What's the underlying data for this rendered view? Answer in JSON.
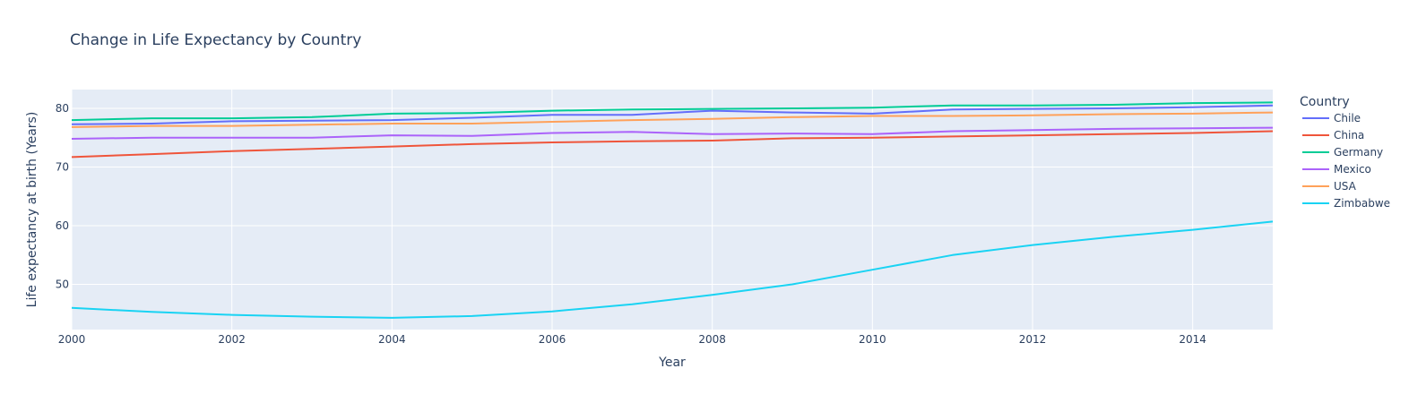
{
  "chart_data": {
    "type": "line",
    "title": "Change in Life Expectancy by Country",
    "xlabel": "Year",
    "ylabel": "Life expectancy at birth (Years)",
    "xlim": [
      2000,
      2015
    ],
    "ylim": [
      42.3,
      83.2
    ],
    "x_ticks": [
      2000,
      2002,
      2004,
      2006,
      2008,
      2010,
      2012,
      2014
    ],
    "y_ticks": [
      50,
      60,
      70,
      80
    ],
    "grid": true,
    "legend_title": "Country",
    "legend_position": "right",
    "x": [
      2000,
      2001,
      2002,
      2003,
      2004,
      2005,
      2006,
      2007,
      2008,
      2009,
      2010,
      2011,
      2012,
      2013,
      2014,
      2015
    ],
    "series": [
      {
        "name": "Chile",
        "color": "#636efa",
        "values": [
          77.3,
          77.4,
          77.8,
          77.9,
          78.0,
          78.4,
          78.9,
          78.9,
          79.6,
          79.3,
          79.1,
          79.8,
          79.9,
          80.0,
          80.2,
          80.5
        ]
      },
      {
        "name": "China",
        "color": "#ef553b",
        "values": [
          71.7,
          72.2,
          72.7,
          73.1,
          73.5,
          73.9,
          74.2,
          74.4,
          74.5,
          74.9,
          75.0,
          75.2,
          75.4,
          75.6,
          75.8,
          76.1
        ]
      },
      {
        "name": "Germany",
        "color": "#00cc96",
        "values": [
          78.0,
          78.3,
          78.3,
          78.5,
          79.1,
          79.2,
          79.6,
          79.8,
          79.9,
          80.0,
          80.1,
          80.5,
          80.5,
          80.6,
          80.9,
          81.0
        ]
      },
      {
        "name": "Mexico",
        "color": "#ab63fa",
        "values": [
          74.8,
          75.0,
          75.0,
          75.0,
          75.4,
          75.3,
          75.8,
          76.0,
          75.6,
          75.7,
          75.6,
          76.1,
          76.3,
          76.5,
          76.6,
          76.7
        ]
      },
      {
        "name": "USA",
        "color": "#ffa15a",
        "values": [
          76.8,
          77.0,
          77.0,
          77.2,
          77.4,
          77.4,
          77.7,
          78.0,
          78.2,
          78.5,
          78.7,
          78.7,
          78.8,
          79.0,
          79.1,
          79.3
        ]
      },
      {
        "name": "Zimbabwe",
        "color": "#19d3f3",
        "values": [
          46.0,
          45.3,
          44.8,
          44.5,
          44.3,
          44.6,
          45.4,
          46.6,
          48.2,
          50.0,
          52.5,
          55.0,
          56.7,
          58.1,
          59.3,
          60.7
        ]
      }
    ]
  },
  "colors": {
    "plot_background": "#e5ecf6",
    "grid": "#ffffff",
    "text": "#2a3f5f"
  }
}
